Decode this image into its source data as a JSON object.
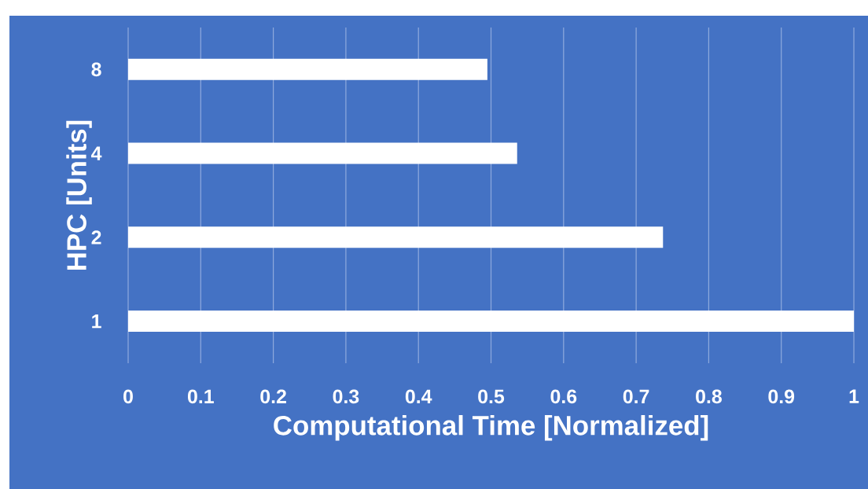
{
  "chart_data": {
    "type": "bar",
    "orientation": "horizontal",
    "xlabel": "Computational Time [Normalized]",
    "ylabel": "HPC [Units]",
    "categories": [
      "8",
      "4",
      "2",
      "1"
    ],
    "values": [
      0.495,
      0.536,
      0.737,
      1.0
    ],
    "color": "#ffffff",
    "xlim": [
      0,
      1
    ],
    "xticks": [
      0,
      0.1,
      0.2,
      0.3,
      0.4,
      0.5,
      0.6,
      0.7,
      0.8,
      0.9,
      1
    ],
    "grid": "x"
  }
}
